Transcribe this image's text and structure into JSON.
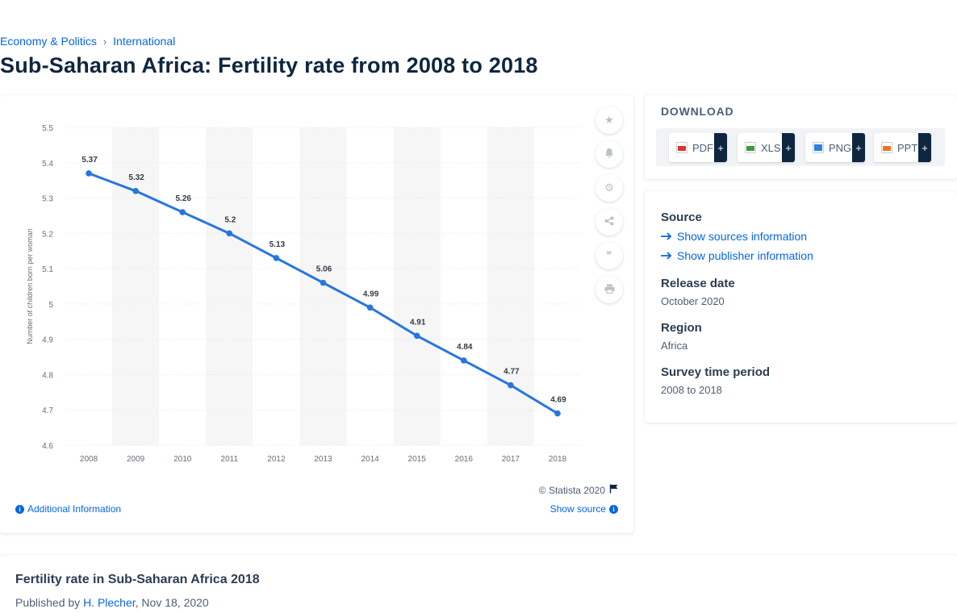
{
  "breadcrumb": {
    "items": [
      "Economy & Politics",
      "International"
    ],
    "separator": "›"
  },
  "page": {
    "title": "Sub-Saharan Africa: Fertility rate from 2008 to 2018"
  },
  "toolbar": {
    "items": [
      {
        "name": "favorite-star-icon",
        "glyph": "★"
      },
      {
        "name": "notification-bell-icon",
        "glyph": "🔔"
      },
      {
        "name": "settings-gear-icon",
        "glyph": "⚙"
      },
      {
        "name": "share-icon",
        "glyph": "⋖"
      },
      {
        "name": "cite-quote-icon",
        "glyph": "❞"
      },
      {
        "name": "print-icon",
        "glyph": "⎙"
      }
    ]
  },
  "chart_data": {
    "type": "line",
    "title": "",
    "xlabel": "",
    "ylabel": "Number of children born per woman",
    "categories": [
      "2008",
      "2009",
      "2010",
      "2011",
      "2012",
      "2013",
      "2014",
      "2015",
      "2016",
      "2017",
      "2018"
    ],
    "series": [
      {
        "values": [
          5.37,
          5.32,
          5.26,
          5.2,
          5.13,
          5.06,
          4.99,
          4.91,
          4.84,
          4.77,
          4.69
        ]
      }
    ],
    "data_labels": [
      "5.37",
      "5.32",
      "5.26",
      "5.2",
      "5.13",
      "5.06",
      "4.99",
      "4.91",
      "4.84",
      "4.77",
      "4.69"
    ],
    "ylim": [
      4.6,
      5.5
    ],
    "yticks": [
      "4.6",
      "4.7",
      "4.8",
      "4.9",
      "5",
      "5.1",
      "5.2",
      "5.3",
      "5.4",
      "5.5"
    ],
    "grid": true,
    "line_color": "#2876dd",
    "band_color": "#f6f6f6"
  },
  "chart_footer": {
    "copyright": "© Statista 2020",
    "additional_info": "Additional Information",
    "show_source": "Show source"
  },
  "download": {
    "title": "DOWNLOAD",
    "buttons": [
      {
        "label": "PDF",
        "color": "#d9362b"
      },
      {
        "label": "XLS",
        "color": "#3a9a3a"
      },
      {
        "label": "PNG",
        "color": "#2f7fd6"
      },
      {
        "label": "PPT",
        "color": "#e3782d"
      }
    ],
    "plus": "+"
  },
  "meta": {
    "source_label": "Source",
    "show_sources": "Show sources information",
    "show_publisher": "Show publisher information",
    "release_label": "Release date",
    "release_value": "October 2020",
    "region_label": "Region",
    "region_value": "Africa",
    "period_label": "Survey time period",
    "period_value": "2008 to 2018"
  },
  "bottom": {
    "title": "Fertility rate in Sub-Saharan Africa 2018",
    "published_prefix": "Published by",
    "author": "H. Plecher",
    "date": ", Nov 18, 2020"
  }
}
